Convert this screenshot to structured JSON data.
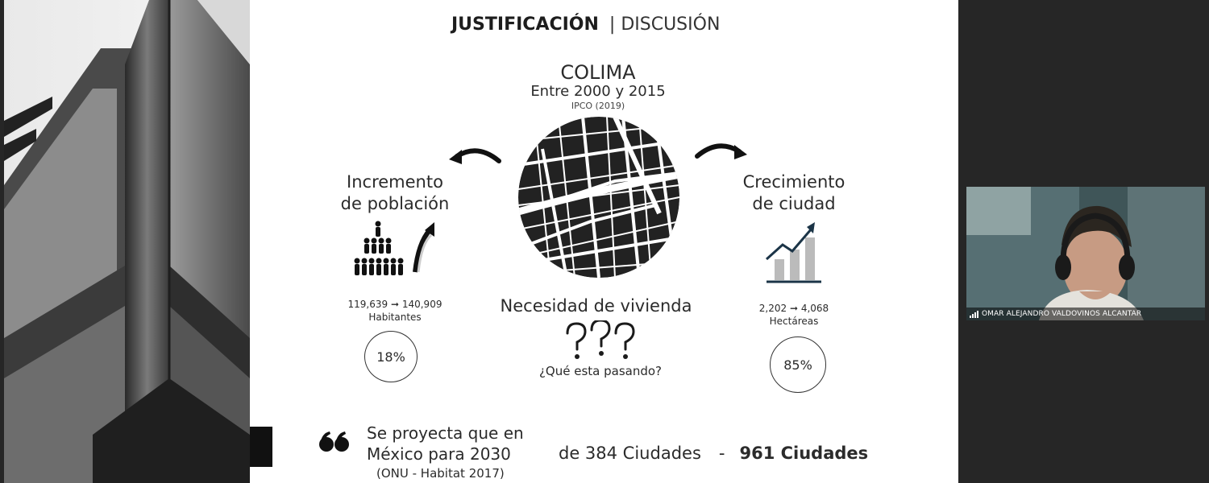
{
  "slide": {
    "title_bold": "JUSTIFICACIÓN",
    "title_rest": "| DISCUSIÓN",
    "center": {
      "city": "COLIMA",
      "years": "Entre 2000 y 2015",
      "source": "IPCO (2019)"
    },
    "left": {
      "title_line1": "Incremento",
      "title_line2": "de población",
      "figures": "119,639 ➞ 140,909",
      "unit": "Habitantes",
      "percent": "18%"
    },
    "right": {
      "title_line1": "Crecimiento",
      "title_line2": "de ciudad",
      "figures": "2,202 ➞ 4,068",
      "unit": "Hectáreas",
      "percent": "85%"
    },
    "need": "Necesidad de vivienda",
    "question": "¿Qué esta pasando?",
    "quote": {
      "line1": "Se proyecta que en",
      "line2": "México para 2030",
      "source": "(ONU - Habitat 2017)",
      "from": "de 384 Ciudades",
      "dash": "-",
      "to": "961 Ciudades"
    }
  },
  "participant": {
    "name": "OMAR ALEJANDRO VALDOVINOS ALCANTAR"
  }
}
